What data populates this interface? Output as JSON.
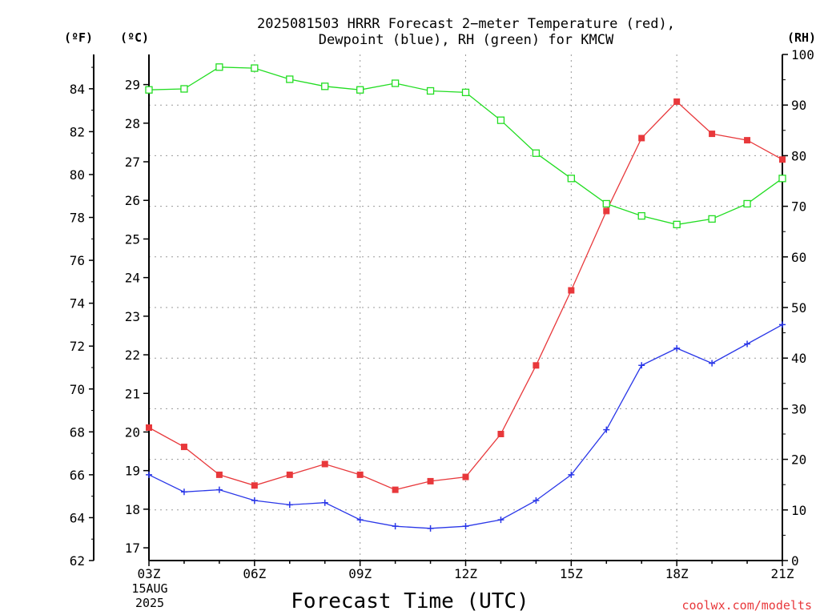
{
  "chart_data": {
    "type": "line",
    "title": "2025081503 HRRR Forecast 2−meter Temperature (red),",
    "subtitle": "Dewpoint (blue), RH (green) for KMCW",
    "xlabel": "Forecast Time (UTC)",
    "x_tick_labels": [
      "03Z",
      "06Z",
      "09Z",
      "12Z",
      "15Z",
      "18Z",
      "21Z"
    ],
    "x_first_tick_extra": [
      "15AUG",
      "2025"
    ],
    "x_hours": [
      3,
      4,
      5,
      6,
      7,
      8,
      9,
      10,
      11,
      12,
      13,
      14,
      15,
      16,
      17,
      18,
      19,
      20,
      21
    ],
    "xlim": [
      3,
      21
    ],
    "axes": {
      "fahrenheit": {
        "unit_label": "(ºF)",
        "lim": [
          62,
          85.6
        ],
        "ticks": [
          62,
          64,
          66,
          68,
          70,
          72,
          74,
          76,
          78,
          80,
          82,
          84
        ]
      },
      "celsius": {
        "unit_label": "(ºC)",
        "lim": [
          16.67,
          29.78
        ],
        "ticks": [
          17,
          18,
          19,
          20,
          21,
          22,
          23,
          24,
          25,
          26,
          27,
          28,
          29
        ]
      },
      "rh": {
        "unit_label": "(RH)",
        "lim": [
          0,
          100
        ],
        "ticks": [
          0,
          10,
          20,
          30,
          40,
          50,
          60,
          70,
          80,
          90,
          100
        ]
      }
    },
    "grid": true,
    "series": [
      {
        "axis": "fahrenheit",
        "color": "#e8383b",
        "marker": "filled-square",
        "values": [
          68.2,
          67.3,
          66.0,
          65.5,
          66.0,
          66.5,
          66.0,
          65.3,
          65.7,
          65.9,
          67.9,
          71.1,
          74.6,
          78.3,
          81.7,
          83.4,
          81.9,
          81.6,
          80.7
        ]
      },
      {
        "axis": "fahrenheit",
        "color": "#2a37e8",
        "marker": "plus",
        "values": [
          66.0,
          65.2,
          65.3,
          64.8,
          64.6,
          64.7,
          63.9,
          63.6,
          63.5,
          63.6,
          63.9,
          64.8,
          66.0,
          68.1,
          71.1,
          71.9,
          71.2,
          72.1,
          73.0
        ]
      },
      {
        "axis": "rh",
        "color": "#22dd22",
        "marker": "open-square",
        "values": [
          93.0,
          93.2,
          97.5,
          97.3,
          95.1,
          93.7,
          93.0,
          94.3,
          92.8,
          92.5,
          87.0,
          80.5,
          75.5,
          70.5,
          68.1,
          66.4,
          67.5,
          70.5,
          75.5
        ]
      }
    ]
  },
  "credit": "coolwx.com/modelts"
}
